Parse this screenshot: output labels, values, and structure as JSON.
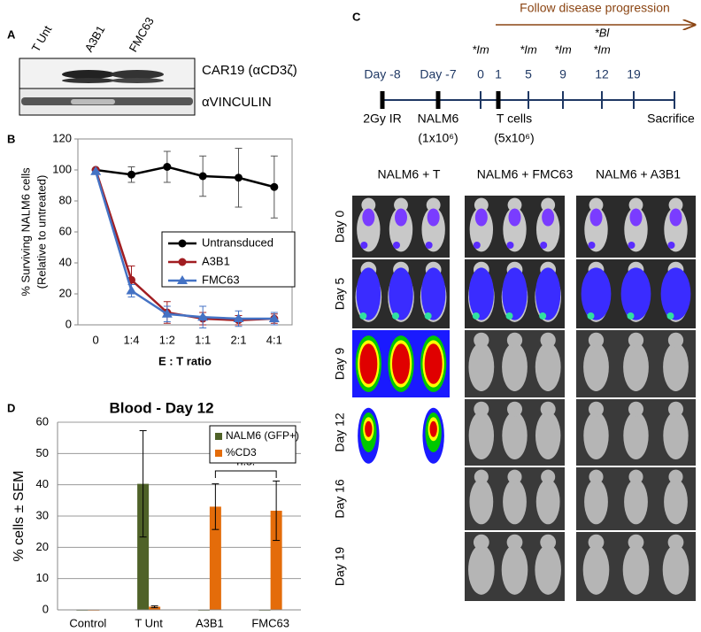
{
  "panel_labels": [
    "A",
    "B",
    "C",
    "D"
  ],
  "blot": {
    "lanes": [
      "T Unt",
      "A3B1",
      "FMC63"
    ],
    "bands": [
      "CAR19 (αCD3ζ)",
      "αVINCULIN"
    ]
  },
  "chart_data": [
    {
      "type": "line",
      "y_label": [
        "% Surviving NALM6 cells",
        "(Relative to untreated)"
      ],
      "x_label": "E : T ratio",
      "categories": [
        "0",
        "1:4",
        "1:2",
        "1:1",
        "2:1",
        "4:1"
      ],
      "ylim": [
        0,
        120
      ],
      "yticks": [
        0,
        20,
        40,
        60,
        80,
        100,
        120
      ],
      "series": [
        {
          "name": "Untransduced",
          "color": "#000000",
          "marker": "circle",
          "values": [
            100,
            97,
            102,
            96,
            95,
            89
          ],
          "errors": [
            0,
            5,
            10,
            13,
            19,
            20
          ]
        },
        {
          "name": "A3B1",
          "color": "#a11d21",
          "marker": "circle",
          "values": [
            100,
            29,
            8,
            4,
            3,
            4
          ],
          "errors": [
            0,
            9,
            7,
            4,
            3,
            3
          ]
        },
        {
          "name": "FMC63",
          "color": "#4472c4",
          "marker": "triangle",
          "values": [
            99,
            22,
            7,
            5,
            4,
            4
          ],
          "errors": [
            0,
            4,
            5,
            7,
            5,
            4
          ]
        }
      ]
    },
    {
      "type": "bar",
      "title": "Blood - Day 12",
      "y_label": "% cells ± SEM",
      "categories": [
        "Control",
        "T Unt",
        "A3B1",
        "FMC63"
      ],
      "ylim": [
        0,
        60
      ],
      "yticks": [
        0,
        10,
        20,
        30,
        40,
        50,
        60
      ],
      "grid": true,
      "annotation": "n.s.",
      "series": [
        {
          "name": "NALM6 (GFP+)",
          "color": "#4f6228",
          "values": [
            0,
            40.3,
            0,
            0
          ],
          "errors": [
            0,
            17,
            0,
            0
          ]
        },
        {
          "name": "%CD3",
          "color": "#e46c0a",
          "values": [
            0,
            1,
            33,
            31.7
          ],
          "errors": [
            0,
            0.3,
            7.3,
            9.5
          ]
        }
      ]
    }
  ],
  "timeline": {
    "banner": "Follow disease progression",
    "days": [
      {
        "label": "Day -8",
        "events": [
          "2Gy IR"
        ]
      },
      {
        "label": "Day -7",
        "events": [
          "NALM6",
          "(1x10⁶)"
        ]
      },
      {
        "label": "0",
        "imaging": [
          "*Im"
        ]
      },
      {
        "label": "1",
        "events": [
          "T cells",
          "(5x10⁶)"
        ]
      },
      {
        "label": "5",
        "imaging": [
          "*Im"
        ]
      },
      {
        "label": "9",
        "imaging": [
          "*Im"
        ]
      },
      {
        "label": "12",
        "imaging": [
          "*Bl",
          "*Im"
        ]
      },
      {
        "label": "19"
      }
    ],
    "end_event": "Sacrifice"
  },
  "imaging": {
    "groups": [
      "NALM6 + T",
      "NALM6 + FMC63",
      "NALM6 + A3B1"
    ],
    "days": [
      "Day 0",
      "Day 5",
      "Day 9",
      "Day 12",
      "Day 16",
      "Day 19"
    ]
  }
}
